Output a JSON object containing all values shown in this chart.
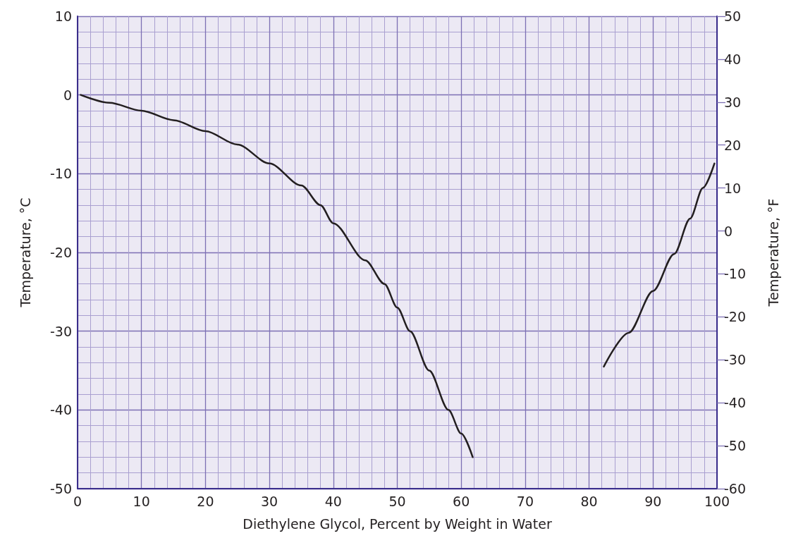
{
  "chart_data": {
    "type": "line",
    "xlabel": "Diethylene Glycol, Percent by Weight in Water",
    "ylabel": "Temperature, °C",
    "y2label": "Temperature, °F",
    "xlim": [
      0,
      100
    ],
    "xticks": [
      0,
      10,
      20,
      30,
      40,
      50,
      60,
      70,
      80,
      90,
      100
    ],
    "ylim": [
      -50,
      10
    ],
    "yticks": [
      -50,
      -40,
      -30,
      -20,
      -10,
      0,
      10
    ],
    "y2lim": [
      -60,
      50
    ],
    "y2ticks": [
      -60,
      -50,
      -40,
      -30,
      -20,
      -10,
      0,
      10,
      20,
      30,
      40,
      50
    ],
    "grid": true,
    "marker": "none",
    "line_style": "solid",
    "series": [
      {
        "color": "#231f20",
        "x": [
          0.5,
          5,
          10,
          15,
          20,
          25,
          30,
          35,
          38,
          40,
          45,
          48,
          50,
          52,
          55,
          58,
          60,
          61.8
        ],
        "values": [
          0,
          -1,
          -2,
          -3.2,
          -4.6,
          -6.3,
          -8.7,
          -11.5,
          -14,
          -16.3,
          -21,
          -24,
          -27,
          -30,
          -35,
          -40,
          -43,
          -46
        ]
      },
      {
        "color": "#231f20",
        "x": [
          82.3,
          86.2,
          90,
          93.3,
          95.8,
          97.8,
          99.6
        ],
        "values": [
          -34.5,
          -30.2,
          -24.9,
          -20.2,
          -15.7,
          -11.8,
          -8.7
        ]
      }
    ]
  }
}
